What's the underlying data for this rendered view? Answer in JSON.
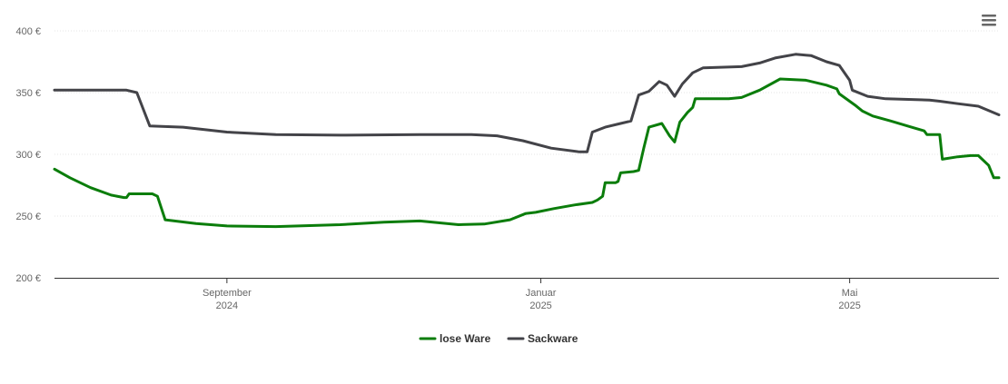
{
  "chart_data": {
    "type": "line",
    "title": "",
    "xlabel": "",
    "ylabel": "",
    "ylim": [
      200,
      400
    ],
    "y_ticks": [
      {
        "value": 200,
        "label": "200 €"
      },
      {
        "value": 250,
        "label": "250 €"
      },
      {
        "value": 300,
        "label": "300 €"
      },
      {
        "value": 350,
        "label": "350 €"
      },
      {
        "value": 400,
        "label": "400 €"
      }
    ],
    "xlim": [
      "2024-06-26",
      "2025-06-28"
    ],
    "x_ticks": [
      {
        "date": "2024-09-01",
        "label_line1": "September",
        "label_line2": "2024"
      },
      {
        "date": "2025-01-01",
        "label_line1": "Januar",
        "label_line2": "2025"
      },
      {
        "date": "2025-05-01",
        "label_line1": "Mai",
        "label_line2": "2025"
      }
    ],
    "grid": "horizontal",
    "legend_position": "bottom-center",
    "series": [
      {
        "name": "lose Ware",
        "color": "#0b7d0b",
        "points": [
          [
            "2024-06-26",
            288
          ],
          [
            "2024-07-02",
            281
          ],
          [
            "2024-07-10",
            273
          ],
          [
            "2024-07-18",
            267
          ],
          [
            "2024-07-23",
            265
          ],
          [
            "2024-07-24",
            265
          ],
          [
            "2024-07-25",
            268
          ],
          [
            "2024-08-01",
            268
          ],
          [
            "2024-08-03",
            268
          ],
          [
            "2024-08-05",
            266
          ],
          [
            "2024-08-08",
            247
          ],
          [
            "2024-08-20",
            244
          ],
          [
            "2024-09-01",
            242
          ],
          [
            "2024-09-20",
            241.5
          ],
          [
            "2024-10-15",
            243
          ],
          [
            "2024-11-01",
            245
          ],
          [
            "2024-11-15",
            246
          ],
          [
            "2024-11-30",
            243
          ],
          [
            "2024-12-10",
            243.5
          ],
          [
            "2024-12-20",
            247
          ],
          [
            "2024-12-26",
            252
          ],
          [
            "2024-12-30",
            253
          ],
          [
            "2025-01-06",
            256
          ],
          [
            "2025-01-14",
            259
          ],
          [
            "2025-01-21",
            261
          ],
          [
            "2025-01-23",
            263
          ],
          [
            "2025-01-25",
            266
          ],
          [
            "2025-01-26",
            277
          ],
          [
            "2025-01-30",
            277
          ],
          [
            "2025-01-31",
            278
          ],
          [
            "2025-02-01",
            285
          ],
          [
            "2025-02-06",
            286
          ],
          [
            "2025-02-08",
            287
          ],
          [
            "2025-02-10",
            305
          ],
          [
            "2025-02-12",
            322
          ],
          [
            "2025-02-17",
            325
          ],
          [
            "2025-02-20",
            315
          ],
          [
            "2025-02-22",
            310
          ],
          [
            "2025-02-24",
            326
          ],
          [
            "2025-02-27",
            334
          ],
          [
            "2025-03-01",
            338
          ],
          [
            "2025-03-02",
            345
          ],
          [
            "2025-03-15",
            345
          ],
          [
            "2025-03-20",
            346
          ],
          [
            "2025-03-27",
            352
          ],
          [
            "2025-04-04",
            361
          ],
          [
            "2025-04-14",
            360
          ],
          [
            "2025-04-22",
            356
          ],
          [
            "2025-04-26",
            353
          ],
          [
            "2025-04-27",
            349
          ],
          [
            "2025-05-03",
            340
          ],
          [
            "2025-05-06",
            335
          ],
          [
            "2025-05-10",
            331
          ],
          [
            "2025-05-17",
            327
          ],
          [
            "2025-05-25",
            322
          ],
          [
            "2025-05-30",
            319
          ],
          [
            "2025-05-31",
            316
          ],
          [
            "2025-06-01",
            316
          ],
          [
            "2025-06-05",
            316
          ],
          [
            "2025-06-06",
            296
          ],
          [
            "2025-06-12",
            298
          ],
          [
            "2025-06-17",
            299
          ],
          [
            "2025-06-20",
            299
          ],
          [
            "2025-06-24",
            291
          ],
          [
            "2025-06-26",
            281
          ],
          [
            "2025-06-28",
            281
          ]
        ]
      },
      {
        "name": "Sackware",
        "color": "#434348",
        "points": [
          [
            "2024-06-26",
            352
          ],
          [
            "2024-07-24",
            352
          ],
          [
            "2024-07-28",
            350
          ],
          [
            "2024-08-02",
            323
          ],
          [
            "2024-08-15",
            322
          ],
          [
            "2024-09-01",
            318
          ],
          [
            "2024-09-20",
            316
          ],
          [
            "2024-10-15",
            315.5
          ],
          [
            "2024-11-15",
            316
          ],
          [
            "2024-12-05",
            316
          ],
          [
            "2024-12-15",
            315
          ],
          [
            "2024-12-25",
            311
          ],
          [
            "2025-01-05",
            305
          ],
          [
            "2025-01-16",
            302
          ],
          [
            "2025-01-19",
            302
          ],
          [
            "2025-01-21",
            318
          ],
          [
            "2025-01-26",
            322
          ],
          [
            "2025-02-01",
            325
          ],
          [
            "2025-02-05",
            327
          ],
          [
            "2025-02-08",
            348
          ],
          [
            "2025-02-12",
            351
          ],
          [
            "2025-02-16",
            359
          ],
          [
            "2025-02-19",
            356
          ],
          [
            "2025-02-22",
            347
          ],
          [
            "2025-02-25",
            357
          ],
          [
            "2025-03-01",
            366
          ],
          [
            "2025-03-05",
            370
          ],
          [
            "2025-03-20",
            371
          ],
          [
            "2025-03-27",
            374
          ],
          [
            "2025-04-02",
            378
          ],
          [
            "2025-04-10",
            381
          ],
          [
            "2025-04-16",
            380
          ],
          [
            "2025-04-22",
            375
          ],
          [
            "2025-04-27",
            372
          ],
          [
            "2025-05-01",
            360
          ],
          [
            "2025-05-02",
            352
          ],
          [
            "2025-05-08",
            347
          ],
          [
            "2025-05-15",
            345
          ],
          [
            "2025-06-01",
            344
          ],
          [
            "2025-06-05",
            343
          ],
          [
            "2025-06-12",
            341
          ],
          [
            "2025-06-20",
            339
          ],
          [
            "2025-06-28",
            332
          ]
        ]
      }
    ]
  },
  "menu": {
    "icon": "hamburger-menu-icon"
  }
}
